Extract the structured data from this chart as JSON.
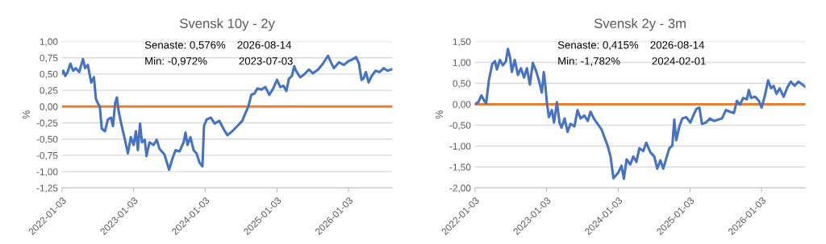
{
  "chart_data": [
    {
      "type": "line",
      "title": "Svensk 10y - 2y",
      "ylabel": "%",
      "annotations": [
        "Senaste: 0,576%",
        "2026-08-14",
        "Min: -0,972%",
        "2023-07-03"
      ],
      "xlim": [
        "2022-01-03",
        "2026-08-14"
      ],
      "xticks": [
        "2022-01-03",
        "2023-01-03",
        "2024-01-03",
        "2025-01-03",
        "2026-01-03"
      ],
      "ylim": [
        -1.25,
        1.0
      ],
      "yticks": [
        {
          "value": -1.25,
          "label": "-1,25"
        },
        {
          "value": -1.0,
          "label": "-1,00"
        },
        {
          "value": -0.75,
          "label": "-0,75"
        },
        {
          "value": -0.5,
          "label": "-0,50"
        },
        {
          "value": -0.25,
          "label": "-0,25"
        },
        {
          "value": 0,
          "label": "0,00"
        },
        {
          "value": 0.25,
          "label": "0,25"
        },
        {
          "value": 0.5,
          "label": "0,50"
        },
        {
          "value": 0.75,
          "label": "0,75"
        },
        {
          "value": 1.0,
          "label": "1,00"
        }
      ],
      "grid": "y",
      "legend": false,
      "marker": "none",
      "line_style": "solid",
      "ref_lines": [
        {
          "axis": "y",
          "value": 0,
          "color": "#ed7d31"
        }
      ],
      "series": [
        {
          "color": "#4472c4",
          "x": [
            "2022-01-03",
            "2022-01-10",
            "2022-01-20",
            "2022-02-01",
            "2022-02-15",
            "2022-03-01",
            "2022-03-15",
            "2022-04-01",
            "2022-04-20",
            "2022-05-01",
            "2022-05-15",
            "2022-06-01",
            "2022-06-15",
            "2022-06-25",
            "2022-07-05",
            "2022-07-15",
            "2022-07-25",
            "2022-08-10",
            "2022-08-25",
            "2022-09-10",
            "2022-09-20",
            "2022-10-01",
            "2022-10-10",
            "2022-10-20",
            "2022-11-01",
            "2022-11-20",
            "2022-12-05",
            "2022-12-20",
            "2023-01-03",
            "2023-01-15",
            "2023-01-25",
            "2023-02-05",
            "2023-02-15",
            "2023-03-01",
            "2023-03-10",
            "2023-03-25",
            "2023-04-15",
            "2023-05-01",
            "2023-05-15",
            "2023-06-10",
            "2023-07-03",
            "2023-07-20",
            "2023-08-05",
            "2023-08-25",
            "2023-09-15",
            "2023-09-25",
            "2023-10-05",
            "2023-10-20",
            "2023-11-05",
            "2023-11-20",
            "2023-12-05",
            "2023-12-20",
            "2023-12-28",
            "2024-01-10",
            "2024-02-01",
            "2024-02-20",
            "2024-03-15",
            "2024-04-05",
            "2024-04-25",
            "2024-05-20",
            "2024-06-15",
            "2024-07-10",
            "2024-07-25",
            "2024-08-10",
            "2024-08-25",
            "2024-09-10",
            "2024-09-25",
            "2024-10-15",
            "2024-11-05",
            "2024-11-25",
            "2024-12-15",
            "2025-01-03",
            "2025-01-20",
            "2025-02-05",
            "2025-02-20",
            "2025-03-05",
            "2025-03-20",
            "2025-04-01",
            "2025-04-10",
            "2025-05-01",
            "2025-05-20",
            "2025-06-15",
            "2025-07-05",
            "2025-08-01",
            "2025-08-25",
            "2025-09-20",
            "2025-10-05",
            "2025-10-20",
            "2025-11-15",
            "2025-12-10",
            "2026-01-03",
            "2026-01-20",
            "2026-02-10",
            "2026-02-25",
            "2026-03-10",
            "2026-03-20",
            "2026-04-01",
            "2026-04-15",
            "2026-05-01",
            "2026-05-20",
            "2026-06-10",
            "2026-07-01",
            "2026-07-20",
            "2026-08-14"
          ],
          "values": [
            0.51,
            0.55,
            0.47,
            0.53,
            0.66,
            0.55,
            0.59,
            0.53,
            0.73,
            0.59,
            0.64,
            0.37,
            0.45,
            0.12,
            0.05,
            0.0,
            -0.34,
            -0.38,
            -0.2,
            -0.17,
            -0.3,
            0.05,
            0.14,
            -0.09,
            -0.26,
            -0.51,
            -0.72,
            -0.47,
            -0.59,
            -0.38,
            -0.67,
            -0.26,
            -0.55,
            -0.51,
            -0.76,
            -0.55,
            -0.59,
            -0.51,
            -0.65,
            -0.74,
            -0.972,
            -0.8,
            -0.67,
            -0.69,
            -0.55,
            -0.4,
            -0.59,
            -0.47,
            -0.67,
            -0.72,
            -0.86,
            -0.92,
            -0.3,
            -0.2,
            -0.17,
            -0.26,
            -0.22,
            -0.34,
            -0.44,
            -0.38,
            -0.3,
            -0.22,
            -0.11,
            0.0,
            0.18,
            0.2,
            0.28,
            0.26,
            0.3,
            0.18,
            0.28,
            0.41,
            0.3,
            0.32,
            0.24,
            0.43,
            0.47,
            0.62,
            0.55,
            0.45,
            0.49,
            0.57,
            0.51,
            0.57,
            0.66,
            0.78,
            0.68,
            0.59,
            0.68,
            0.64,
            0.7,
            0.72,
            0.76,
            0.66,
            0.41,
            0.43,
            0.53,
            0.37,
            0.47,
            0.55,
            0.53,
            0.59,
            0.55,
            0.576
          ]
        }
      ]
    },
    {
      "type": "line",
      "title": "Svensk 2y - 3m",
      "ylabel": "%",
      "annotations": [
        "Senaste: 0,415%",
        "2026-08-14",
        "Min: -1,782%",
        "2024-02-01"
      ],
      "xlim": [
        "2022-01-03",
        "2026-08-14"
      ],
      "xticks": [
        "2022-01-03",
        "2023-01-03",
        "2024-01-03",
        "2025-01-03",
        "2026-01-03"
      ],
      "ylim": [
        -2.0,
        1.5
      ],
      "yticks": [
        {
          "value": -2.0,
          "label": "-2,00"
        },
        {
          "value": -1.5,
          "label": "-1,50"
        },
        {
          "value": -1.0,
          "label": "-1,00"
        },
        {
          "value": -0.5,
          "label": "-0,50"
        },
        {
          "value": 0,
          "label": "0,00"
        },
        {
          "value": 0.5,
          "label": "0,50"
        },
        {
          "value": 1.0,
          "label": "1,00"
        },
        {
          "value": 1.5,
          "label": "1,50"
        }
      ],
      "grid": "y",
      "legend": false,
      "marker": "none",
      "line_style": "solid",
      "ref_lines": [
        {
          "axis": "y",
          "value": 0,
          "color": "#ed7d31"
        }
      ],
      "series": [
        {
          "color": "#4472c4",
          "x": [
            "2022-01-03",
            "2022-01-20",
            "2022-02-05",
            "2022-02-20",
            "2022-03-01",
            "2022-03-15",
            "2022-04-01",
            "2022-04-15",
            "2022-04-25",
            "2022-05-10",
            "2022-05-25",
            "2022-06-10",
            "2022-06-20",
            "2022-07-01",
            "2022-07-10",
            "2022-07-25",
            "2022-08-10",
            "2022-08-25",
            "2022-09-10",
            "2022-09-25",
            "2022-10-10",
            "2022-10-25",
            "2022-11-10",
            "2022-11-25",
            "2022-12-10",
            "2022-12-20",
            "2022-12-28",
            "2023-01-05",
            "2023-01-15",
            "2023-01-30",
            "2023-02-10",
            "2023-02-25",
            "2023-03-10",
            "2023-03-20",
            "2023-04-05",
            "2023-04-20",
            "2023-05-05",
            "2023-05-25",
            "2023-06-10",
            "2023-06-25",
            "2023-07-15",
            "2023-08-01",
            "2023-08-15",
            "2023-09-01",
            "2023-09-20",
            "2023-10-10",
            "2023-10-25",
            "2023-11-10",
            "2023-11-25",
            "2023-12-10",
            "2024-01-03",
            "2024-01-20",
            "2024-02-01",
            "2024-02-15",
            "2024-03-05",
            "2024-03-20",
            "2024-04-05",
            "2024-04-20",
            "2024-05-10",
            "2024-05-25",
            "2024-06-15",
            "2024-07-05",
            "2024-07-20",
            "2024-08-05",
            "2024-08-20",
            "2024-09-05",
            "2024-09-20",
            "2024-10-05",
            "2024-10-15",
            "2024-10-25",
            "2024-11-10",
            "2024-11-25",
            "2024-12-15",
            "2025-01-05",
            "2025-01-20",
            "2025-02-05",
            "2025-02-20",
            "2025-03-05",
            "2025-03-25",
            "2025-04-15",
            "2025-05-05",
            "2025-05-25",
            "2025-06-15",
            "2025-07-05",
            "2025-07-25",
            "2025-08-15",
            "2025-08-30",
            "2025-09-15",
            "2025-10-01",
            "2025-10-20",
            "2025-10-30",
            "2025-11-10",
            "2025-12-01",
            "2025-12-20",
            "2026-01-03",
            "2026-01-20",
            "2026-02-05",
            "2026-02-20",
            "2026-03-05",
            "2026-03-20",
            "2026-04-05",
            "2026-04-25",
            "2026-05-15",
            "2026-06-01",
            "2026-06-20",
            "2026-07-10",
            "2026-08-14"
          ],
          "values": [
            0.0,
            0.05,
            0.21,
            0.08,
            0.02,
            0.57,
            0.96,
            1.03,
            0.83,
            1.06,
            0.93,
            1.03,
            1.32,
            1.12,
            0.77,
            1.06,
            0.7,
            0.86,
            0.64,
            0.86,
            0.47,
            0.99,
            0.8,
            0.57,
            0.28,
            0.77,
            0.44,
            0.02,
            -0.31,
            -0.14,
            -0.44,
            0.05,
            -0.44,
            -0.56,
            -0.34,
            -0.66,
            -0.47,
            -0.53,
            -0.14,
            -0.34,
            -0.27,
            -0.4,
            -0.18,
            -0.34,
            -0.47,
            -0.6,
            -0.79,
            -0.99,
            -1.25,
            -1.77,
            -1.64,
            -1.47,
            -1.782,
            -1.32,
            -1.44,
            -1.25,
            -1.38,
            -1.05,
            -1.12,
            -0.92,
            -1.15,
            -1.25,
            -1.54,
            -1.34,
            -1.54,
            -1.28,
            -1.05,
            -0.99,
            -0.37,
            -0.86,
            -0.53,
            -0.34,
            -0.31,
            -0.44,
            -0.27,
            -0.11,
            -0.08,
            -0.47,
            -0.44,
            -0.34,
            -0.4,
            -0.37,
            -0.34,
            -0.14,
            -0.18,
            -0.21,
            0.08,
            -0.01,
            0.15,
            0.12,
            0.34,
            0.15,
            0.18,
            0.08,
            -0.08,
            0.21,
            0.57,
            0.38,
            0.44,
            0.25,
            0.38,
            0.18,
            0.41,
            0.54,
            0.44,
            0.54,
            0.415
          ]
        }
      ]
    }
  ]
}
